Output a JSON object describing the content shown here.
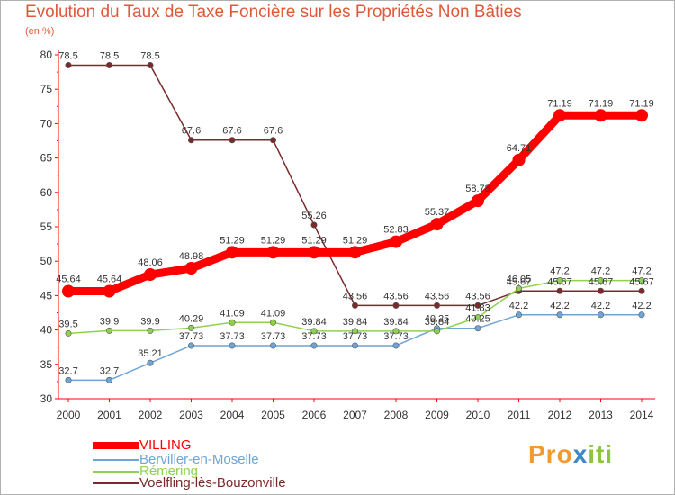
{
  "chart_data": {
    "type": "line",
    "title": "Evolution du Taux de Taxe Foncière sur les Propriétés Non Bâties",
    "ylabel": "(en %)",
    "xlabel": "",
    "x": [
      "2000",
      "2001",
      "2002",
      "2003",
      "2004",
      "2005",
      "2006",
      "2007",
      "2008",
      "2009",
      "2010",
      "2011",
      "2012",
      "2013",
      "2014"
    ],
    "ylim": [
      30,
      80
    ],
    "yticks": [
      30,
      35,
      40,
      45,
      50,
      55,
      60,
      65,
      70,
      75,
      80
    ],
    "grid": false,
    "legend_position": "bottom-left",
    "series": [
      {
        "name": "VILLING",
        "color": "#ff0000",
        "values": [
          45.64,
          45.64,
          48.06,
          48.98,
          51.29,
          51.29,
          51.29,
          51.29,
          52.83,
          55.37,
          58.78,
          64.71,
          71.19,
          71.19,
          71.19
        ],
        "labels": [
          "45.64",
          "45.64",
          "48.06",
          "48.98",
          "51.29",
          "51.29",
          "51.29",
          "51.29",
          "52.83",
          "55.37",
          "58.78",
          "64.71",
          "71.19",
          "71.19",
          "71.19"
        ]
      },
      {
        "name": "Berviller-en-Moselle",
        "color": "#6fa4d6",
        "values": [
          32.7,
          32.7,
          35.21,
          37.73,
          37.73,
          37.73,
          37.73,
          37.73,
          37.73,
          40.25,
          40.25,
          42.2,
          42.2,
          42.2,
          42.2
        ],
        "labels": [
          "32.7",
          "32.7",
          "35.21",
          "37.73",
          "37.73",
          "37.73",
          "37.73",
          "37.73",
          "37.73",
          "40.25",
          "40.25",
          "42.2",
          "42.2",
          "42.2",
          "42.2"
        ]
      },
      {
        "name": "Rémering",
        "color": "#8fd14f",
        "values": [
          39.5,
          39.9,
          39.9,
          40.29,
          41.09,
          41.09,
          39.84,
          39.84,
          39.84,
          39.84,
          41.83,
          46.05,
          47.2,
          47.2,
          47.2
        ],
        "labels": [
          "39.5",
          "39.9",
          "39.9",
          "40.29",
          "41.09",
          "41.09",
          "39.84",
          "39.84",
          "39.84",
          "39.84",
          "41.83",
          "46.05",
          "47.2",
          "47.2",
          "47.2"
        ]
      },
      {
        "name": "Voelfling-lès-Bouzonville",
        "color": "#7a2a2a",
        "values": [
          78.5,
          78.5,
          78.5,
          67.6,
          67.6,
          67.6,
          55.26,
          43.56,
          43.56,
          43.56,
          43.56,
          45.67,
          45.67,
          45.67,
          45.67
        ],
        "labels": [
          "78.5",
          "78.5",
          "78.5",
          "67.6",
          "67.6",
          "67.6",
          "55.26",
          "43.56",
          "43.56",
          "43.56",
          "43.56",
          "45.67",
          "45.67",
          "45.67",
          "45.67"
        ]
      }
    ]
  },
  "logo": {
    "text": "Proxiti"
  }
}
